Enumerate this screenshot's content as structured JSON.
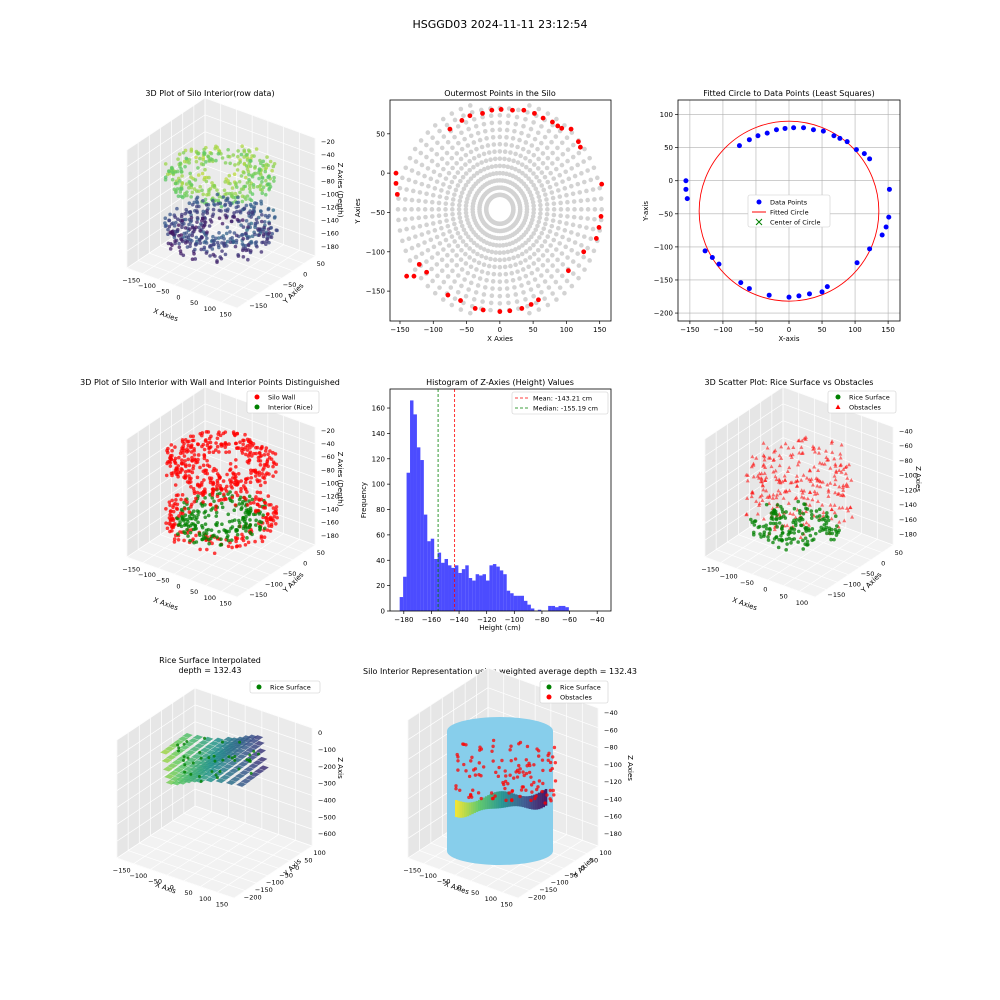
{
  "figure": {
    "suptitle": "HSGGD03 2024-11-11 23:12:54"
  },
  "chart_data": [
    {
      "id": "p1",
      "type": "scatter",
      "title": "3D Plot of Silo Interior(row data)",
      "xlabel": "X Axies",
      "ylabel": "Y Axies",
      "zlabel": "Z Axies (Depth)",
      "x_ticks": [
        "−150",
        "−100",
        "−50",
        "0",
        "50",
        "100",
        "150"
      ],
      "y_ticks": [
        "50",
        "0",
        "−50",
        "−100",
        "−150"
      ],
      "z_ticks": [
        "−20",
        "−40",
        "−60",
        "−80",
        "−100",
        "−120",
        "−140",
        "−160",
        "−180"
      ],
      "colormap": [
        "#440154",
        "#3b528b",
        "#21918c",
        "#5ec962",
        "#fde725"
      ]
    },
    {
      "id": "p2",
      "type": "scatter",
      "title": "Outermost Points in the Silo",
      "xlabel": "X Axies",
      "ylabel": "Y Axies",
      "xlim": [
        -165,
        167
      ],
      "ylim": [
        -188,
        93
      ],
      "x_ticks": [
        -150,
        -100,
        -50,
        0,
        50,
        100,
        150
      ],
      "y_ticks": [
        -150,
        -100,
        -50,
        0,
        50
      ],
      "all_points_color": "#d3d3d3",
      "outer_color": "#ff0000",
      "outer_points": [
        [
          -156,
          0
        ],
        [
          -156,
          -13
        ],
        [
          -154,
          -27
        ],
        [
          -140,
          -131
        ],
        [
          -129,
          -131
        ],
        [
          -121,
          -116
        ],
        [
          -110,
          -126
        ],
        [
          -78,
          -155
        ],
        [
          -59,
          -162
        ],
        [
          -37,
          -172
        ],
        [
          -25,
          -174
        ],
        [
          0,
          -176
        ],
        [
          15,
          -175
        ],
        [
          33,
          -172
        ],
        [
          47,
          -167
        ],
        [
          58,
          -161
        ],
        [
          103,
          -124
        ],
        [
          126,
          -100
        ],
        [
          145,
          -83
        ],
        [
          149,
          -69
        ],
        [
          152,
          -55
        ],
        [
          153,
          -14
        ],
        [
          107,
          56
        ],
        [
          118,
          40
        ],
        [
          121,
          33
        ],
        [
          87,
          60
        ],
        [
          93,
          57
        ],
        [
          79,
          65
        ],
        [
          65,
          70
        ],
        [
          52,
          76
        ],
        [
          36,
          80
        ],
        [
          19,
          80
        ],
        [
          2,
          81
        ],
        [
          -12,
          80
        ],
        [
          -26,
          76
        ],
        [
          -45,
          73
        ],
        [
          -57,
          67
        ],
        [
          -75,
          56
        ]
      ]
    },
    {
      "id": "p3",
      "type": "scatter",
      "title": "Fitted Circle to Data Points (Least Squares)",
      "xlabel": "X-axis",
      "ylabel": "Y-axis",
      "xlim": [
        -168,
        168
      ],
      "ylim": [
        -212,
        122
      ],
      "x_ticks": [
        -150,
        -100,
        -50,
        0,
        50,
        100,
        150
      ],
      "y_ticks": [
        -200,
        -150,
        -100,
        -50,
        0,
        50,
        100
      ],
      "grid": true,
      "legend_position": "center",
      "series": [
        {
          "name": "Data Points",
          "color": "#0000ff",
          "points": [
            [
              -156,
              0
            ],
            [
              -156,
              -13
            ],
            [
              -154,
              -27
            ],
            [
              -127,
              -106
            ],
            [
              -116,
              -116
            ],
            [
              -106,
              -126
            ],
            [
              -73,
              -154
            ],
            [
              -60,
              -163
            ],
            [
              -30,
              -173
            ],
            [
              0,
              -176
            ],
            [
              15,
              -174
            ],
            [
              31,
              -171
            ],
            [
              50,
              -168
            ],
            [
              58,
              -160
            ],
            [
              103,
              -124
            ],
            [
              122,
              -103
            ],
            [
              141,
              -82
            ],
            [
              147,
              -70
            ],
            [
              151,
              -55
            ],
            [
              152,
              -13
            ],
            [
              -75,
              53
            ],
            [
              -60,
              62
            ],
            [
              -47,
              68
            ],
            [
              -33,
              72
            ],
            [
              -19,
              77
            ],
            [
              -6,
              79
            ],
            [
              7,
              80
            ],
            [
              22,
              80
            ],
            [
              37,
              77
            ],
            [
              52,
              75
            ],
            [
              68,
              68
            ],
            [
              77,
              64
            ],
            [
              88,
              59
            ],
            [
              102,
              47
            ],
            [
              114,
              41
            ],
            [
              122,
              33
            ]
          ]
        },
        {
          "name": "Fitted Circle",
          "color": "#ff0000",
          "center": [
            0,
            -46
          ],
          "radius": 136
        },
        {
          "name": "Center of Circle",
          "color": "#008000",
          "point": [
            0,
            -46
          ]
        }
      ]
    },
    {
      "id": "p4",
      "type": "scatter",
      "title": "3D Plot of Silo Interior with Wall and Interior Points Distinguished",
      "xlabel": "X Axies",
      "ylabel": "Y Axies",
      "zlabel": "Z Axies (Depth)",
      "x_ticks": [
        "−150",
        "−100",
        "−50",
        "0",
        "50",
        "100",
        "150"
      ],
      "y_ticks": [
        "50",
        "0",
        "−50",
        "−100",
        "−150"
      ],
      "z_ticks": [
        "−20",
        "−40",
        "−60",
        "−80",
        "−100",
        "−120",
        "−140",
        "−160",
        "−180"
      ],
      "legend_position": "upper right",
      "series": [
        {
          "name": "Silo Wall",
          "color": "#ff0000"
        },
        {
          "name": "Interior (Rice)",
          "color": "#008000"
        }
      ]
    },
    {
      "id": "p5",
      "type": "bar",
      "title": "Histogram of Z-Axies (Height) Values",
      "xlabel": "Height (cm)",
      "ylabel": "Frequency",
      "xlim": [
        -190,
        -30
      ],
      "ylim": [
        0,
        175
      ],
      "x_ticks": [
        -180,
        -160,
        -140,
        -120,
        -100,
        -80,
        -60,
        -40
      ],
      "y_ticks": [
        0,
        20,
        40,
        60,
        80,
        100,
        120,
        140,
        160
      ],
      "bin_start": -183,
      "bin_width": 2.5,
      "bar_color": "#0000ff",
      "values": [
        11,
        27,
        109,
        166,
        155,
        129,
        119,
        76,
        55,
        57,
        41,
        46,
        38,
        41,
        36,
        34,
        36,
        30,
        33,
        36,
        26,
        24,
        29,
        28,
        29,
        24,
        36,
        37,
        35,
        32,
        29,
        16,
        14,
        12,
        12,
        12,
        8,
        5,
        2,
        0,
        1,
        0,
        0,
        4,
        4,
        3,
        4,
        4,
        3
      ],
      "legend_position": "upper right",
      "lines": [
        {
          "name": "Mean: -143.21 cm",
          "x": -143.21,
          "color": "#ff0000"
        },
        {
          "name": "Median: -155.19 cm",
          "x": -155.19,
          "color": "#008000"
        }
      ]
    },
    {
      "id": "p6",
      "type": "scatter",
      "title": "3D Scatter Plot: Rice Surface vs Obstacles",
      "xlabel": "X Axies",
      "ylabel": "Y Axies",
      "zlabel": "Z Axies",
      "x_ticks": [
        "−150",
        "−100",
        "−50",
        "0",
        "50",
        "100"
      ],
      "y_ticks": [
        "50",
        "0",
        "−50",
        "−100",
        "−150"
      ],
      "z_ticks": [
        "−40",
        "−60",
        "−80",
        "−100",
        "−120",
        "−140",
        "−160",
        "−180"
      ],
      "legend_position": "upper right",
      "series": [
        {
          "name": "Rice Surface",
          "color": "#008000",
          "marker": "circle"
        },
        {
          "name": "Obstacles",
          "color": "#ff0000",
          "marker": "triangle"
        }
      ]
    },
    {
      "id": "p7",
      "type": "area",
      "title": "Rice Surface Interpolated",
      "subtitle": "depth = 132.43",
      "xlabel": "X Axis",
      "ylabel": "Y Axis",
      "zlabel": "Z Axis",
      "x_ticks": [
        "−150",
        "−100",
        "−50",
        "0",
        "50",
        "100",
        "150"
      ],
      "y_ticks": [
        "100",
        "50",
        "0",
        "−50",
        "−100",
        "−150",
        "−200"
      ],
      "z_ticks": [
        "0",
        "−100",
        "−200",
        "−300",
        "−400",
        "−500",
        "−600"
      ],
      "legend_position": "upper right",
      "series": [
        {
          "name": "Rice Surface",
          "color": "#008000"
        }
      ]
    },
    {
      "id": "p8",
      "type": "scatter",
      "title": "Silo Interior Representation using weighted average depth = 132.43",
      "xlabel": "X Axies",
      "ylabel": "Y Axies",
      "zlabel": "Z Axies",
      "x_ticks": [
        "−150",
        "−100",
        "−50",
        "0",
        "50",
        "100",
        "150"
      ],
      "y_ticks": [
        "100",
        "50",
        "0",
        "−50",
        "−100",
        "−150",
        "−200"
      ],
      "z_ticks": [
        "−40",
        "−60",
        "−80",
        "−100",
        "−120",
        "−140",
        "−160",
        "−180"
      ],
      "cylinder_color": "#87ceeb",
      "legend_position": "upper right",
      "series": [
        {
          "name": "Rice Surface",
          "color": "#008000"
        },
        {
          "name": "Obstacles",
          "color": "#ff0000"
        }
      ]
    }
  ]
}
